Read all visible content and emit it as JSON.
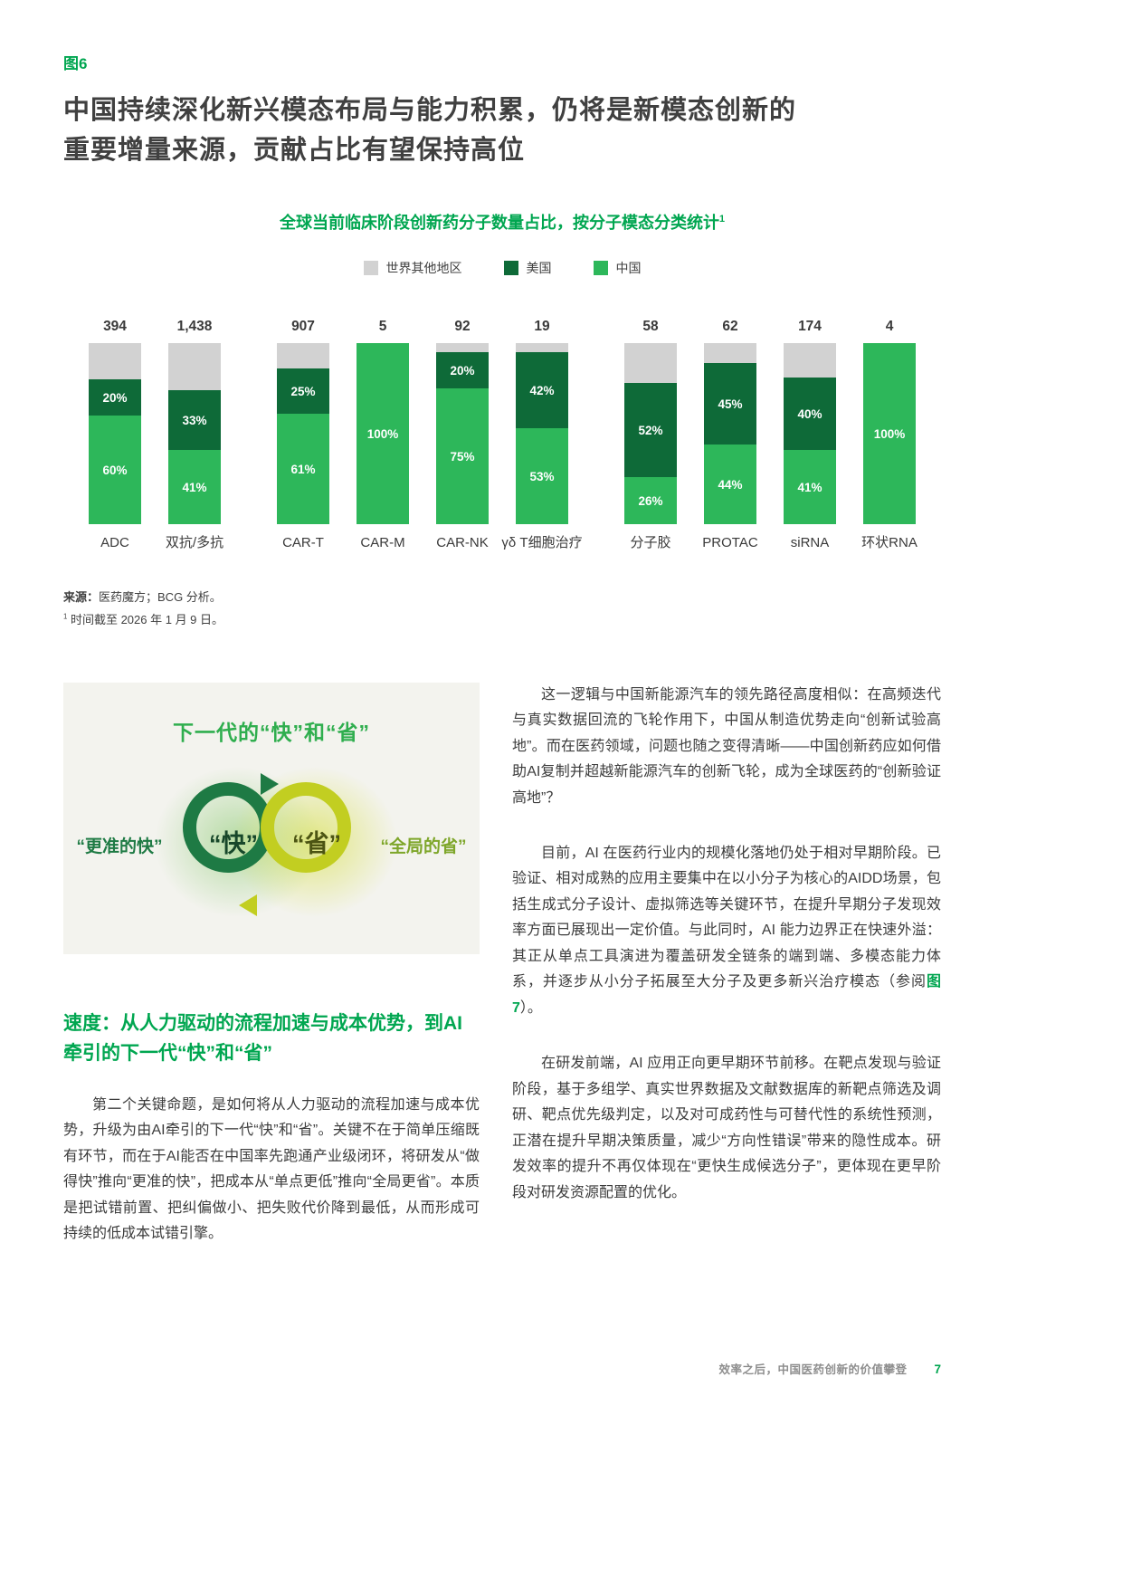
{
  "page": {
    "fig_label": "图6",
    "title_line1": "中国持续深化新兴模态布局与能力积累，仍将是新模态创新的",
    "title_line2": "重要增量来源，贡献占比有望保持高位",
    "footer_text": "效率之后，中国医药创新的价值攀登",
    "page_number": "7"
  },
  "chart_data": {
    "type": "bar",
    "title": "全球当前临床阶段创新药分子数量占比，按分子模态分类统计",
    "title_superscript": "1",
    "stacked_percent": true,
    "ylim": [
      0,
      100
    ],
    "legend": [
      {
        "key": "rest",
        "label": "世界其他地区",
        "color": "#d2d2d2"
      },
      {
        "key": "us",
        "label": "美国",
        "color": "#0e6a38"
      },
      {
        "key": "china",
        "label": "中国",
        "color": "#2db75a"
      }
    ],
    "colors": {
      "rest": "#d2d2d2",
      "us": "#0e6a38",
      "china": "#2db75a"
    },
    "bars": [
      {
        "group": 0,
        "category": "ADC",
        "total": "394",
        "china": 60,
        "us": 20,
        "rest": 20
      },
      {
        "group": 0,
        "category": "双抗/多抗",
        "total": "1,438",
        "china": 41,
        "us": 33,
        "rest": 26
      },
      {
        "group": 1,
        "category": "CAR-T",
        "total": "907",
        "china": 61,
        "us": 25,
        "rest": 14
      },
      {
        "group": 1,
        "category": "CAR-M",
        "total": "5",
        "china": 100,
        "us": 0,
        "rest": 0
      },
      {
        "group": 1,
        "category": "CAR-NK",
        "total": "92",
        "china": 75,
        "us": 20,
        "rest": 5
      },
      {
        "group": 1,
        "category": "γδ T细胞治疗",
        "total": "19",
        "china": 53,
        "us": 42,
        "rest": 5
      },
      {
        "group": 2,
        "category": "分子胶",
        "total": "58",
        "china": 26,
        "us": 52,
        "rest": 22
      },
      {
        "group": 2,
        "category": "PROTAC",
        "total": "62",
        "china": 44,
        "us": 45,
        "rest": 11
      },
      {
        "group": 2,
        "category": "siRNA",
        "total": "174",
        "china": 41,
        "us": 40,
        "rest": 19
      },
      {
        "group": 2,
        "category": "环状RNA",
        "total": "4",
        "china": 100,
        "us": 0,
        "rest": 0
      }
    ]
  },
  "source": {
    "label": "来源：",
    "text": "医药魔方；BCG 分析。",
    "footnote_mark": "1",
    "footnote_text": "时间截至 2026 年 1 月 9 日。"
  },
  "diagram": {
    "title": "下一代的“快”和“省”",
    "left_label": "“更准的快”",
    "center_left_label": "“快”",
    "center_right_label": "“省”",
    "right_label": "“全局的省”"
  },
  "left_column": {
    "heading": "速度：从人力驱动的流程加速与成本优势，到AI牵引的下一代“快”和“省”",
    "paragraph": "第二个关键命题，是如何将从人力驱动的流程加速与成本优势，升级为由AI牵引的下一代“快”和“省”。关键不在于简单压缩既有环节，而在于AI能否在中国率先跑通产业级闭环，将研发从“做得快”推向“更准的快”，把成本从“单点更低”推向“全局更省”。本质是把试错前置、把纠偏做小、把失败代价降到最低，从而形成可持续的低成本试错引擎。"
  },
  "right_column": {
    "p1": "这一逻辑与中国新能源汽车的领先路径高度相似：在高频迭代与真实数据回流的飞轮作用下，中国从制造优势走向“创新试验高地”。而在医药领域，问题也随之变得清晰——中国创新药应如何借助AI复制并超越新能源汽车的创新飞轮，成为全球医药的“创新验证高地”？",
    "p2_before": "目前，AI 在医药行业内的规模化落地仍处于相对早期阶段。已验证、相对成熟的应用主要集中在以小分子为核心的AIDD场景，包括生成式分子设计、虚拟筛选等关键环节，在提升早期分子发现效率方面已展现出一定价值。与此同时，AI 能力边界正在快速外溢：其正从单点工具演进为覆盖研发全链条的端到端、多模态能力体系，并逐步从小分子拓展至大分子及更多新兴治疗模态（参阅",
    "p2_figref": "图7",
    "p2_after": "）。",
    "p3": "在研发前端，AI 应用正向更早期环节前移。在靶点发现与验证阶段，基于多组学、真实世界数据及文献数据库的新靶点筛选及调研、靶点优先级判定，以及对可成药性与可替代性的系统性预测，正潜在提升早期决策质量，减少“方向性错误”带来的隐性成本。研发效率的提升不再仅体现在“更快生成候选分子”，更体现在更早阶段对研发资源配置的优化。"
  }
}
